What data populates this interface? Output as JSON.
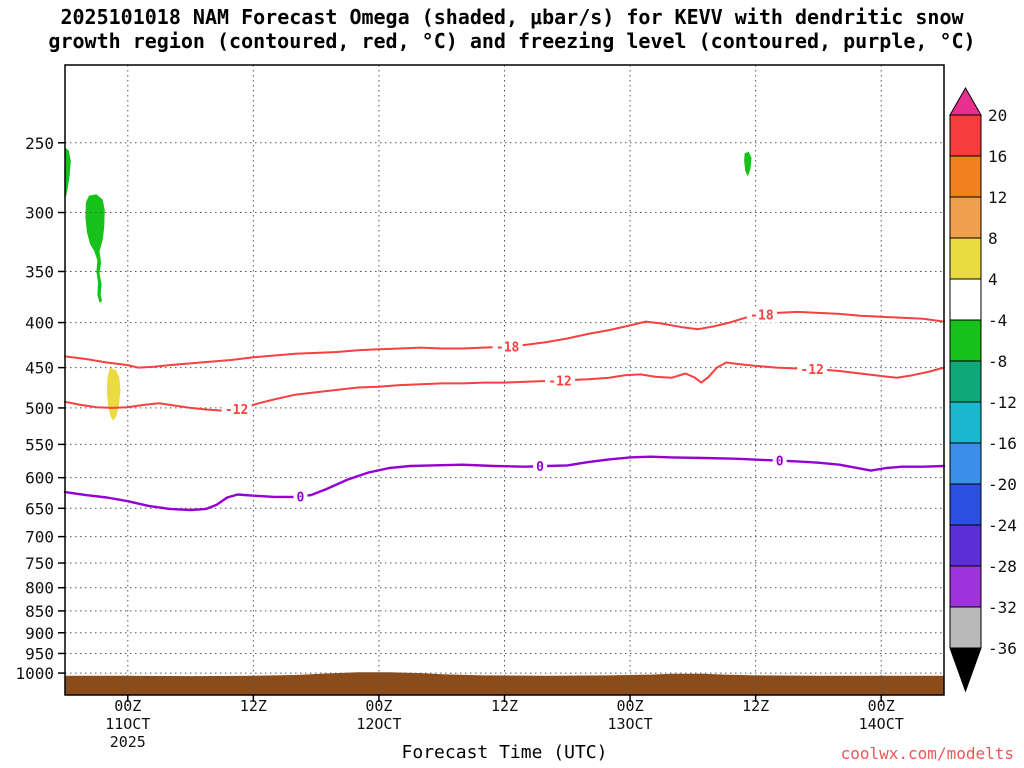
{
  "title": {
    "line1": "2025101018 NAM Forecast Omega (shaded, μbar/s) for KEVV with dendritic snow",
    "line2": "growth region (contoured, red, °C) and freezing level (contoured, purple, °C)"
  },
  "watermark": {
    "text": "coolwx.com/modelts",
    "color": "#f05555"
  },
  "chart_data": {
    "type": "contour-time-height",
    "station": "KEVV",
    "shaded_variable": "Omega (μbar/s)",
    "x_axis": {
      "label": "Forecast Time (UTC)",
      "hours_start": 0,
      "hours_end": 84,
      "ticks": [
        {
          "hour": 6,
          "label": "00Z"
        },
        {
          "hour": 18,
          "label": "12Z"
        },
        {
          "hour": 30,
          "label": "00Z"
        },
        {
          "hour": 42,
          "label": "12Z"
        },
        {
          "hour": 54,
          "label": "00Z"
        },
        {
          "hour": 66,
          "label": "12Z"
        },
        {
          "hour": 78,
          "label": "00Z"
        }
      ],
      "date_labels": [
        {
          "hour": 6,
          "label": "11OCT"
        },
        {
          "hour": 30,
          "label": "12OCT"
        },
        {
          "hour": 54,
          "label": "13OCT"
        },
        {
          "hour": 78,
          "label": "14OCT"
        }
      ],
      "year": {
        "hour": 6,
        "label": "2025"
      }
    },
    "y_axis": {
      "unit": "hPa",
      "scale": "log",
      "top_pressure": 204,
      "bottom_pressure": 1059,
      "ticks": [
        250,
        300,
        350,
        400,
        450,
        500,
        550,
        600,
        650,
        700,
        750,
        800,
        850,
        900,
        950,
        1000
      ]
    },
    "colorbar": {
      "labels": [
        "20",
        "16",
        "12",
        "8",
        "4",
        "-4",
        "-8",
        "-12",
        "-16",
        "-20",
        "-24",
        "-28",
        "-32",
        "-36"
      ],
      "top_color": "#e8308e",
      "bottom_color": "#000000",
      "segment_colors": [
        "#f73c3c",
        "#f0811c",
        "#f0a04c",
        "#eadc40",
        "#ffffff",
        "#16c11a",
        "#0fa878",
        "#1cb8d0",
        "#3c8fe8",
        "#2b50e0",
        "#5a2fd8",
        "#a032dc",
        "#b9b9b9"
      ]
    },
    "contours": [
      {
        "name": "dendritic-growth-minus18C",
        "label": "-18",
        "color": "#f74040",
        "width": 2,
        "label_hours": [
          42.3,
          66.6
        ],
        "points": [
          [
            0,
            437
          ],
          [
            2,
            440
          ],
          [
            4,
            444
          ],
          [
            6,
            447
          ],
          [
            7,
            450
          ],
          [
            8.5,
            449
          ],
          [
            10,
            447
          ],
          [
            12,
            445
          ],
          [
            14,
            443
          ],
          [
            16,
            441
          ],
          [
            18,
            438
          ],
          [
            20,
            436
          ],
          [
            22,
            434
          ],
          [
            24,
            433
          ],
          [
            26,
            432
          ],
          [
            28,
            430
          ],
          [
            30,
            429
          ],
          [
            32,
            428
          ],
          [
            34,
            427
          ],
          [
            36,
            428
          ],
          [
            38,
            428
          ],
          [
            40,
            427
          ],
          [
            42,
            426
          ],
          [
            44,
            424
          ],
          [
            46,
            421
          ],
          [
            48,
            417
          ],
          [
            50,
            412
          ],
          [
            52,
            408
          ],
          [
            54,
            403
          ],
          [
            55.5,
            399
          ],
          [
            57,
            401
          ],
          [
            59,
            405
          ],
          [
            60.5,
            407
          ],
          [
            62,
            404
          ],
          [
            63.5,
            400
          ],
          [
            65,
            395
          ],
          [
            66.5,
            392
          ],
          [
            68,
            390
          ],
          [
            70,
            389
          ],
          [
            72,
            390
          ],
          [
            74,
            391
          ],
          [
            76,
            393
          ],
          [
            78,
            394
          ],
          [
            80,
            395
          ],
          [
            82,
            396
          ],
          [
            84,
            399
          ]
        ]
      },
      {
        "name": "dendritic-growth-minus12C",
        "label": "-12",
        "color": "#f74040",
        "width": 2,
        "label_hours": [
          16.4,
          47.3,
          71.4
        ],
        "points": [
          [
            0,
            492
          ],
          [
            1.5,
            496
          ],
          [
            3,
            499
          ],
          [
            4.5,
            500
          ],
          [
            6,
            499
          ],
          [
            7.5,
            496
          ],
          [
            9,
            494
          ],
          [
            10.5,
            497
          ],
          [
            12,
            500
          ],
          [
            13.5,
            502
          ],
          [
            15.5,
            504
          ],
          [
            17,
            500
          ],
          [
            18.5,
            494
          ],
          [
            20,
            489
          ],
          [
            22,
            483
          ],
          [
            24,
            480
          ],
          [
            26,
            477
          ],
          [
            28,
            474
          ],
          [
            30,
            473
          ],
          [
            32,
            471
          ],
          [
            34,
            470
          ],
          [
            36,
            469
          ],
          [
            38,
            469
          ],
          [
            40,
            468
          ],
          [
            42,
            468
          ],
          [
            44,
            467
          ],
          [
            46,
            466
          ],
          [
            48,
            465
          ],
          [
            50,
            464
          ],
          [
            52,
            462
          ],
          [
            53.5,
            459
          ],
          [
            55,
            458
          ],
          [
            56.5,
            461
          ],
          [
            58,
            462
          ],
          [
            59.3,
            457
          ],
          [
            60.2,
            462
          ],
          [
            60.8,
            468
          ],
          [
            61.5,
            461
          ],
          [
            62.3,
            450
          ],
          [
            63.2,
            444
          ],
          [
            64.5,
            446
          ],
          [
            66,
            448
          ],
          [
            68,
            450
          ],
          [
            70,
            451
          ],
          [
            72,
            452
          ],
          [
            74,
            454
          ],
          [
            76,
            457
          ],
          [
            78,
            460
          ],
          [
            79.5,
            462
          ],
          [
            81,
            459
          ],
          [
            82.5,
            455
          ],
          [
            84,
            450
          ]
        ]
      },
      {
        "name": "freezing-level-0C",
        "label": "0",
        "color": "#9400d3",
        "width": 2.4,
        "label_hours": [
          22.5,
          45.4,
          68.3
        ],
        "points": [
          [
            0,
            623
          ],
          [
            2,
            628
          ],
          [
            4,
            632
          ],
          [
            6,
            638
          ],
          [
            8,
            646
          ],
          [
            10,
            651
          ],
          [
            12,
            653
          ],
          [
            13.5,
            651
          ],
          [
            14.5,
            644
          ],
          [
            15.5,
            632
          ],
          [
            16.5,
            627
          ],
          [
            18,
            629
          ],
          [
            20,
            631
          ],
          [
            22,
            631
          ],
          [
            23.5,
            628
          ],
          [
            25,
            618
          ],
          [
            27,
            603
          ],
          [
            29,
            592
          ],
          [
            31,
            585
          ],
          [
            33,
            582
          ],
          [
            35,
            581
          ],
          [
            38,
            580
          ],
          [
            41,
            582
          ],
          [
            44,
            583
          ],
          [
            46,
            582
          ],
          [
            48,
            581
          ],
          [
            50,
            576
          ],
          [
            52,
            572
          ],
          [
            54,
            569
          ],
          [
            56,
            568
          ],
          [
            58,
            569
          ],
          [
            61,
            570
          ],
          [
            64,
            571
          ],
          [
            67,
            573
          ],
          [
            70,
            575
          ],
          [
            72,
            577
          ],
          [
            74,
            580
          ],
          [
            76,
            586
          ],
          [
            77,
            589
          ],
          [
            78.5,
            585
          ],
          [
            80,
            583
          ],
          [
            82,
            583
          ],
          [
            84,
            582
          ]
        ]
      }
    ],
    "shaded_regions": [
      {
        "name": "omega-green-left-sliver",
        "value_range": "-8 to -4",
        "color": "#16c11a",
        "points": [
          [
            0,
            253
          ],
          [
            0.35,
            255
          ],
          [
            0.55,
            262
          ],
          [
            0.45,
            272
          ],
          [
            0.25,
            282
          ],
          [
            0.1,
            288
          ],
          [
            0,
            288
          ]
        ]
      },
      {
        "name": "omega-green-blob",
        "value_range": "-8 to -4",
        "color": "#16c11a",
        "points": [
          [
            2.0,
            292
          ],
          [
            2.3,
            287
          ],
          [
            3.0,
            286
          ],
          [
            3.6,
            290
          ],
          [
            3.8,
            298
          ],
          [
            3.75,
            312
          ],
          [
            3.6,
            322
          ],
          [
            3.3,
            332
          ],
          [
            3.45,
            342
          ],
          [
            3.3,
            352
          ],
          [
            3.5,
            362
          ],
          [
            3.4,
            372
          ],
          [
            3.55,
            378
          ],
          [
            3.3,
            380
          ],
          [
            3.1,
            372
          ],
          [
            3.15,
            360
          ],
          [
            3.0,
            350
          ],
          [
            3.1,
            340
          ],
          [
            2.8,
            332
          ],
          [
            2.4,
            326
          ],
          [
            2.1,
            316
          ],
          [
            1.95,
            304
          ]
        ]
      },
      {
        "name": "omega-green-small-right",
        "value_range": "-8 to -4",
        "color": "#16c11a",
        "points": [
          [
            64.95,
            257
          ],
          [
            65.35,
            256
          ],
          [
            65.6,
            260
          ],
          [
            65.5,
            268
          ],
          [
            65.25,
            273
          ],
          [
            65.0,
            269
          ],
          [
            64.9,
            262
          ]
        ]
      },
      {
        "name": "omega-yellow-blob",
        "value_range": "4 to 8",
        "color": "#eadc40",
        "points": [
          [
            4.3,
            450
          ],
          [
            4.9,
            453
          ],
          [
            5.2,
            462
          ],
          [
            5.3,
            478
          ],
          [
            5.15,
            497
          ],
          [
            4.9,
            511
          ],
          [
            4.6,
            517
          ],
          [
            4.35,
            511
          ],
          [
            4.1,
            496
          ],
          [
            4.0,
            478
          ],
          [
            4.05,
            462
          ]
        ]
      }
    ],
    "terrain": {
      "color": "#8a4c1b",
      "top_edge": [
        [
          0,
          1007
        ],
        [
          6,
          1007
        ],
        [
          12,
          1008
        ],
        [
          18,
          1007
        ],
        [
          22,
          1005
        ],
        [
          25,
          1001
        ],
        [
          28,
          998
        ],
        [
          31,
          998
        ],
        [
          34,
          1000
        ],
        [
          36,
          1003
        ],
        [
          40,
          1006
        ],
        [
          46,
          1007
        ],
        [
          52,
          1006
        ],
        [
          56,
          1004
        ],
        [
          58,
          1002
        ],
        [
          61,
          1002
        ],
        [
          63,
          1004
        ],
        [
          66,
          1006
        ],
        [
          72,
          1007
        ],
        [
          78,
          1007
        ],
        [
          84,
          1007
        ]
      ]
    }
  }
}
